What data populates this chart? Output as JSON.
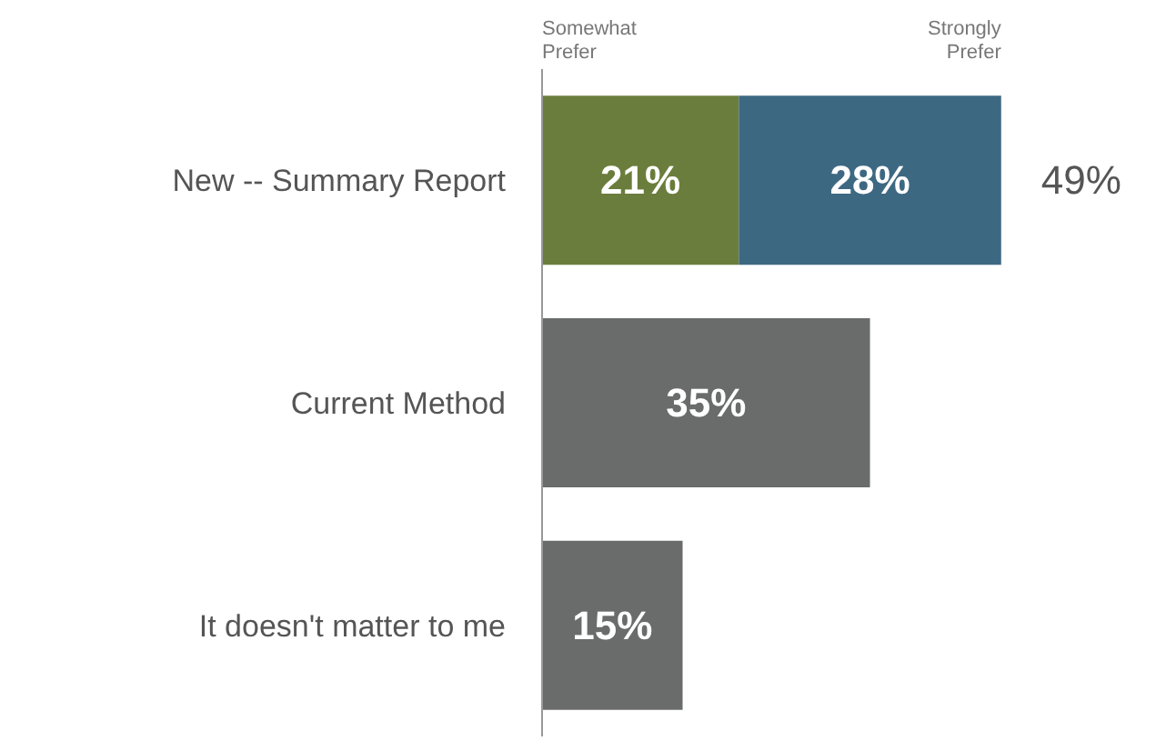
{
  "chart_data": {
    "type": "bar",
    "orientation": "horizontal",
    "stacked": true,
    "categories": [
      "New -- Summary Report",
      "Current Method",
      "It doesn't matter to me"
    ],
    "series": [
      {
        "name": "Somewhat Prefer",
        "color": "#6b7d3c",
        "values": [
          21,
          null,
          null
        ],
        "value_labels": [
          "21%",
          null,
          null
        ]
      },
      {
        "name": "Strongly Prefer",
        "color": "#3d6882",
        "values": [
          28,
          null,
          null
        ],
        "value_labels": [
          "28%",
          null,
          null
        ]
      },
      {
        "color": "#6a6c6c",
        "values": [
          null,
          35,
          15
        ],
        "value_labels": [
          null,
          "35%",
          "15%"
        ]
      }
    ],
    "totals": [
      "49%",
      null,
      null
    ],
    "legend": "top",
    "grid": false
  }
}
